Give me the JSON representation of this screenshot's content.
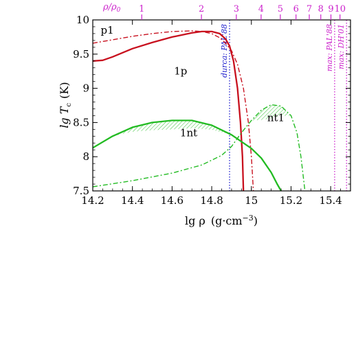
{
  "chart_data": {
    "type": "line",
    "xlabel_main": "lg ρ",
    "xlabel_unit": "(g·cm",
    "xlabel_exp": "−3",
    "xlabel_close": ")",
    "ylabel_main": "lg T",
    "ylabel_sub": "c",
    "ylabel_unit": "(K)",
    "top_axis_label": "ρ/ρ",
    "top_axis_label_sub": "0",
    "xlim": [
      14.2,
      15.5
    ],
    "ylim": [
      7.5,
      10.0
    ],
    "x_ticks": [
      14.2,
      14.4,
      14.6,
      14.8,
      15.0,
      15.2,
      15.4
    ],
    "x_tick_labels": [
      "14.2",
      "14.4",
      "14.6",
      "14.8",
      "15",
      "15.2",
      "15.4"
    ],
    "y_ticks": [
      7.5,
      8.0,
      8.5,
      9.0,
      9.5,
      10.0
    ],
    "y_tick_labels": [
      "7.5",
      "8",
      "8.5",
      "9",
      "9.5",
      "10"
    ],
    "top_ticks": [
      1,
      2,
      3,
      4,
      5,
      6,
      7,
      8,
      9,
      10
    ],
    "top_tick_labels": [
      "1",
      "2",
      "3",
      "4",
      "5",
      "6",
      "7",
      "8",
      "9",
      "10"
    ],
    "rho0_lg": 14.447,
    "colors": {
      "proton": "#c8101e",
      "neutron": "#22bb22",
      "durca": "#1a1acc",
      "max": "#cc22cc",
      "axis": "#000000"
    },
    "series": [
      {
        "name": "1p",
        "style": "solid",
        "color": "proton",
        "points": [
          [
            14.2,
            9.4
          ],
          [
            14.25,
            9.41
          ],
          [
            14.3,
            9.46
          ],
          [
            14.4,
            9.58
          ],
          [
            14.5,
            9.67
          ],
          [
            14.6,
            9.75
          ],
          [
            14.7,
            9.81
          ],
          [
            14.75,
            9.83
          ],
          [
            14.8,
            9.83
          ],
          [
            14.84,
            9.8
          ],
          [
            14.87,
            9.72
          ],
          [
            14.89,
            9.62
          ],
          [
            14.91,
            9.4
          ],
          [
            14.93,
            9.0
          ],
          [
            14.945,
            8.5
          ],
          [
            14.955,
            8.0
          ],
          [
            14.96,
            7.5
          ]
        ]
      },
      {
        "name": "p1",
        "style": "dashdot",
        "color": "proton",
        "points": [
          [
            14.2,
            9.66
          ],
          [
            14.3,
            9.71
          ],
          [
            14.4,
            9.76
          ],
          [
            14.5,
            9.8
          ],
          [
            14.6,
            9.83
          ],
          [
            14.7,
            9.84
          ],
          [
            14.75,
            9.83
          ],
          [
            14.8,
            9.8
          ],
          [
            14.84,
            9.74
          ],
          [
            14.87,
            9.66
          ],
          [
            14.9,
            9.55
          ],
          [
            14.93,
            9.35
          ],
          [
            14.96,
            9.0
          ],
          [
            14.985,
            8.5
          ],
          [
            15.0,
            8.0
          ],
          [
            15.01,
            7.5
          ]
        ]
      },
      {
        "name": "1nt",
        "style": "solid",
        "color": "neutron",
        "points": [
          [
            14.2,
            8.13
          ],
          [
            14.3,
            8.3
          ],
          [
            14.4,
            8.43
          ],
          [
            14.5,
            8.5
          ],
          [
            14.6,
            8.53
          ],
          [
            14.7,
            8.53
          ],
          [
            14.8,
            8.46
          ],
          [
            14.9,
            8.32
          ],
          [
            15.0,
            8.12
          ],
          [
            15.05,
            7.98
          ],
          [
            15.1,
            7.77
          ],
          [
            15.13,
            7.6
          ],
          [
            15.15,
            7.5
          ]
        ]
      },
      {
        "name": "nt1",
        "style": "dashdot",
        "color": "neutron",
        "points": [
          [
            14.2,
            7.56
          ],
          [
            14.4,
            7.65
          ],
          [
            14.6,
            7.76
          ],
          [
            14.75,
            7.88
          ],
          [
            14.85,
            8.02
          ],
          [
            14.9,
            8.15
          ],
          [
            14.95,
            8.35
          ],
          [
            15.0,
            8.53
          ],
          [
            15.05,
            8.68
          ],
          [
            15.1,
            8.76
          ],
          [
            15.15,
            8.74
          ],
          [
            15.2,
            8.6
          ],
          [
            15.23,
            8.35
          ],
          [
            15.25,
            8.0
          ],
          [
            15.26,
            7.75
          ],
          [
            15.27,
            7.5
          ]
        ]
      }
    ],
    "vlines": [
      {
        "label": "durca: PAL'88",
        "x": 14.89,
        "color": "durca"
      },
      {
        "label": "max: PAL'88",
        "x": 15.42,
        "color": "max"
      },
      {
        "label": "max: DH'01",
        "x": 15.48,
        "color": "max"
      }
    ],
    "curve_labels": [
      {
        "text": "p1",
        "x": 14.24,
        "y": 9.8
      },
      {
        "text": "1p",
        "x": 14.61,
        "y": 9.2
      },
      {
        "text": "1nt",
        "x": 14.64,
        "y": 8.3
      },
      {
        "text": "nt1",
        "x": 15.08,
        "y": 8.52
      }
    ]
  }
}
